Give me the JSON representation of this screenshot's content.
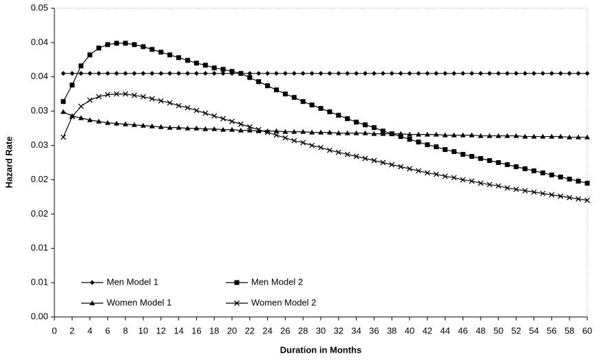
{
  "chart_data": {
    "type": "line",
    "xlabel": "Duration in Months",
    "ylabel": "Hazard Rate",
    "x": [
      1,
      2,
      3,
      4,
      5,
      6,
      7,
      8,
      9,
      10,
      11,
      12,
      13,
      14,
      15,
      16,
      17,
      18,
      19,
      20,
      21,
      22,
      23,
      24,
      25,
      26,
      27,
      28,
      29,
      30,
      31,
      32,
      33,
      34,
      35,
      36,
      37,
      38,
      39,
      40,
      41,
      42,
      43,
      44,
      45,
      46,
      47,
      48,
      49,
      50,
      51,
      52,
      53,
      54,
      55,
      56,
      57,
      58,
      59,
      60
    ],
    "series": [
      {
        "name": "Men Model 1",
        "color": "#000000",
        "marker": "diamond",
        "values": [
          0.0355,
          0.0355,
          0.0355,
          0.0355,
          0.0355,
          0.0355,
          0.0355,
          0.0355,
          0.0355,
          0.0355,
          0.0355,
          0.0355,
          0.0355,
          0.0355,
          0.0355,
          0.0355,
          0.0355,
          0.0355,
          0.0355,
          0.0355,
          0.0355,
          0.0355,
          0.0355,
          0.0355,
          0.0355,
          0.0355,
          0.0355,
          0.0355,
          0.0355,
          0.0355,
          0.0355,
          0.0355,
          0.0355,
          0.0355,
          0.0355,
          0.0355,
          0.0355,
          0.0355,
          0.0355,
          0.0355,
          0.0355,
          0.0355,
          0.0355,
          0.0355,
          0.0355,
          0.0355,
          0.0355,
          0.0355,
          0.0355,
          0.0355,
          0.0355,
          0.0355,
          0.0355,
          0.0355,
          0.0355,
          0.0355,
          0.0355,
          0.0355,
          0.0355,
          0.0355
        ]
      },
      {
        "name": "Men Model 2",
        "color": "#000000",
        "marker": "square",
        "values": [
          0.0314,
          0.0338,
          0.0366,
          0.0382,
          0.0392,
          0.0397,
          0.0399,
          0.0399,
          0.0397,
          0.0394,
          0.039,
          0.0386,
          0.0382,
          0.0378,
          0.0374,
          0.037,
          0.0367,
          0.0363,
          0.0361,
          0.0358,
          0.0355,
          0.0349,
          0.0343,
          0.0337,
          0.0331,
          0.0325,
          0.032,
          0.0314,
          0.0309,
          0.0304,
          0.0299,
          0.0294,
          0.0289,
          0.0284,
          0.028,
          0.0276,
          0.0271,
          0.0267,
          0.0263,
          0.0259,
          0.0255,
          0.0251,
          0.0248,
          0.0244,
          0.0241,
          0.0237,
          0.0234,
          0.0231,
          0.0228,
          0.0225,
          0.0222,
          0.0219,
          0.0216,
          0.0213,
          0.021,
          0.0207,
          0.0204,
          0.0201,
          0.0198,
          0.0195
        ]
      },
      {
        "name": "Women Model 1",
        "color": "#000000",
        "marker": "triangle",
        "values": [
          0.0299,
          0.0293,
          0.029,
          0.0287,
          0.0285,
          0.0283,
          0.0282,
          0.0281,
          0.028,
          0.0279,
          0.0278,
          0.0277,
          0.0276,
          0.0276,
          0.0275,
          0.0275,
          0.0274,
          0.0274,
          0.0273,
          0.0273,
          0.0272,
          0.0272,
          0.0271,
          0.0271,
          0.0271,
          0.027,
          0.027,
          0.027,
          0.0269,
          0.0269,
          0.0269,
          0.0268,
          0.0268,
          0.0268,
          0.0268,
          0.0267,
          0.0267,
          0.0267,
          0.0267,
          0.0266,
          0.0266,
          0.0266,
          0.0266,
          0.0265,
          0.0265,
          0.0265,
          0.0265,
          0.0264,
          0.0264,
          0.0264,
          0.0264,
          0.0264,
          0.0263,
          0.0263,
          0.0263,
          0.0263,
          0.0263,
          0.0262,
          0.0262,
          0.0262
        ]
      },
      {
        "name": "Women Model 2",
        "color": "#000000",
        "marker": "x",
        "values": [
          0.0262,
          0.0292,
          0.0307,
          0.0316,
          0.0321,
          0.0324,
          0.0325,
          0.0325,
          0.0323,
          0.0321,
          0.0318,
          0.0315,
          0.0312,
          0.0308,
          0.0305,
          0.0301,
          0.0297,
          0.0293,
          0.0289,
          0.0285,
          0.0281,
          0.0277,
          0.0273,
          0.0269,
          0.0265,
          0.0261,
          0.0257,
          0.0254,
          0.025,
          0.0247,
          0.0243,
          0.024,
          0.0237,
          0.0234,
          0.0231,
          0.0228,
          0.0225,
          0.0222,
          0.0219,
          0.0216,
          0.0213,
          0.021,
          0.0208,
          0.0205,
          0.0203,
          0.02,
          0.0198,
          0.0195,
          0.0193,
          0.0191,
          0.0188,
          0.0186,
          0.0184,
          0.0182,
          0.018,
          0.0178,
          0.0176,
          0.0174,
          0.0172,
          0.017
        ]
      }
    ],
    "xlim": [
      0,
      60
    ],
    "xticks": [
      0,
      2,
      4,
      6,
      8,
      10,
      12,
      14,
      16,
      18,
      20,
      22,
      24,
      26,
      28,
      30,
      32,
      34,
      36,
      38,
      40,
      42,
      44,
      46,
      48,
      50,
      52,
      54,
      56,
      58,
      60
    ],
    "ylim": [
      0,
      0.045
    ],
    "yticks": [
      {
        "value": 0,
        "label": "0.00"
      },
      {
        "value": 0.005,
        "label": "0.01"
      },
      {
        "value": 0.01,
        "label": "0.01"
      },
      {
        "value": 0.015,
        "label": "0.02"
      },
      {
        "value": 0.02,
        "label": "0.02"
      },
      {
        "value": 0.025,
        "label": "0.03"
      },
      {
        "value": 0.03,
        "label": "0.03"
      },
      {
        "value": 0.035,
        "label": "0.04"
      },
      {
        "value": 0.04,
        "label": "0.04"
      },
      {
        "value": 0.045,
        "label": "0.05"
      }
    ],
    "grid": false
  }
}
